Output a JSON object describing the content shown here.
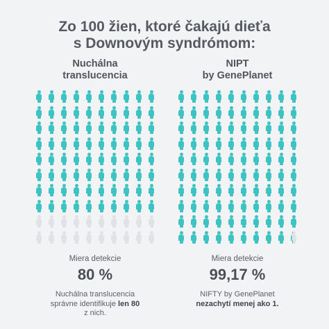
{
  "title_line1": "Zo 100 žien, ktoré čakajú dieťa",
  "title_line2": "s Downovým syndrómom:",
  "colors": {
    "detected": "#3ec3c3",
    "missed": "#dfe2e6",
    "background": "#f2f3f5"
  },
  "columns": [
    {
      "heading_line1": "Nuchálna",
      "heading_line2": "translucencia",
      "detected_count": 80,
      "total": 100,
      "rate_label": "Miera detekcie",
      "rate_value": "80 %",
      "desc_line1": "Nuchálna translucencia",
      "desc_line2_pre": "správne identifikuje ",
      "desc_line2_bold": "len 80",
      "desc_line3": "z nich."
    },
    {
      "heading_line1": "NIPT",
      "heading_line2": "by GenePlanet",
      "detected_count": 99.17,
      "total": 100,
      "rate_label": "Miera detekcie",
      "rate_value": "99,17 %",
      "desc_line1": "NIFTY by GenePlanet",
      "desc_line2_bold": "nezachytí menej ako 1."
    }
  ]
}
